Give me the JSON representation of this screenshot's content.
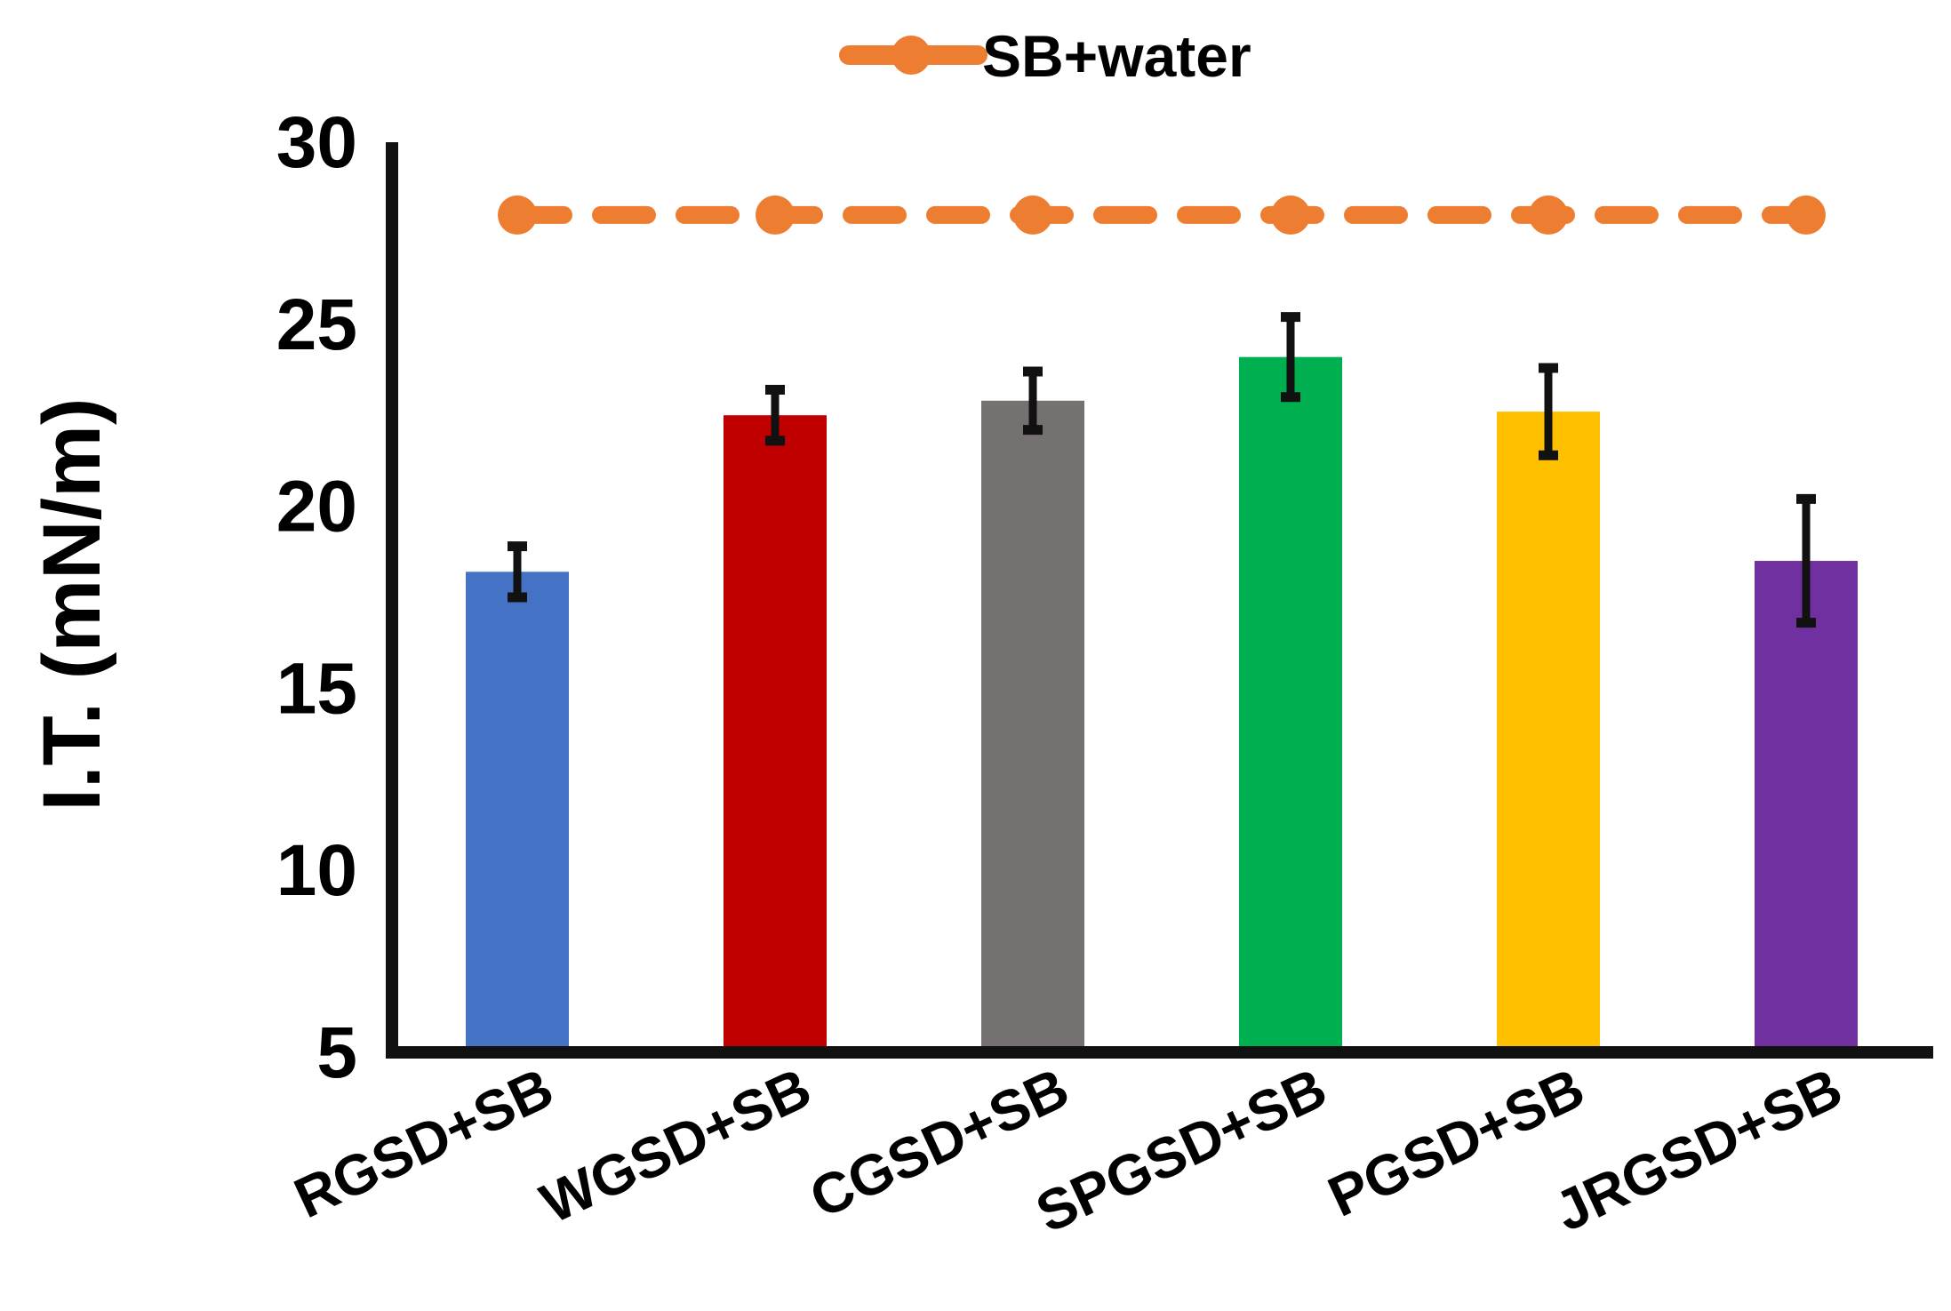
{
  "chart_data": {
    "type": "bar",
    "title": "",
    "xlabel": "",
    "ylabel": "I.T. (mN/m)",
    "ylim": [
      5,
      30
    ],
    "yticks": [
      5,
      10,
      15,
      20,
      25,
      30
    ],
    "grid": false,
    "legend_position": "top-center",
    "categories": [
      "RGSD+SB",
      "WGSD+SB",
      "CGSD+SB",
      "SPGSD+SB",
      "PGSD+SB",
      "JRGSD+SB"
    ],
    "series": [
      {
        "name": "I.T.",
        "values": [
          18.2,
          22.5,
          22.9,
          24.1,
          22.6,
          18.5
        ],
        "errors": [
          0.7,
          0.7,
          0.8,
          1.1,
          1.2,
          1.7
        ],
        "colors": [
          "#4472C4",
          "#C00000",
          "#767171",
          "#00B050",
          "#FFC000",
          "#7030A0"
        ]
      },
      {
        "name": "SB+water",
        "type": "line",
        "style": "dashed",
        "marker": "circle",
        "color": "#ED7D31",
        "values": [
          28,
          28,
          28,
          28,
          28,
          28
        ]
      }
    ]
  }
}
